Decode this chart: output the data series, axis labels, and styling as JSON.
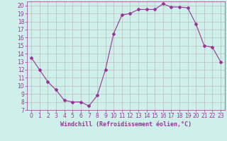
{
  "x": [
    0,
    1,
    2,
    3,
    4,
    5,
    6,
    7,
    8,
    9,
    10,
    11,
    12,
    13,
    14,
    15,
    16,
    17,
    18,
    19,
    20,
    21,
    22,
    23
  ],
  "y": [
    13.5,
    12.0,
    10.5,
    9.5,
    8.2,
    8.0,
    8.0,
    7.5,
    8.8,
    12.0,
    16.5,
    18.8,
    19.0,
    19.5,
    19.5,
    19.5,
    20.2,
    19.8,
    19.8,
    19.7,
    17.7,
    15.0,
    14.8,
    13.0
  ],
  "line_color": "#993399",
  "marker": "D",
  "marker_size": 2,
  "bg_color": "#cff0ea",
  "grid_color": "#aaaaaa",
  "xlabel": "Windchill (Refroidissement éolien,°C)",
  "xlabel_color": "#993399",
  "tick_color": "#993399",
  "xlim": [
    -0.5,
    23.5
  ],
  "ylim": [
    7,
    20.5
  ],
  "yticks": [
    7,
    8,
    9,
    10,
    11,
    12,
    13,
    14,
    15,
    16,
    17,
    18,
    19,
    20
  ],
  "xticks": [
    0,
    1,
    2,
    3,
    4,
    5,
    6,
    7,
    8,
    9,
    10,
    11,
    12,
    13,
    14,
    15,
    16,
    17,
    18,
    19,
    20,
    21,
    22,
    23
  ],
  "tick_fontsize": 5.5,
  "xlabel_fontsize": 6.0,
  "linewidth": 0.8
}
